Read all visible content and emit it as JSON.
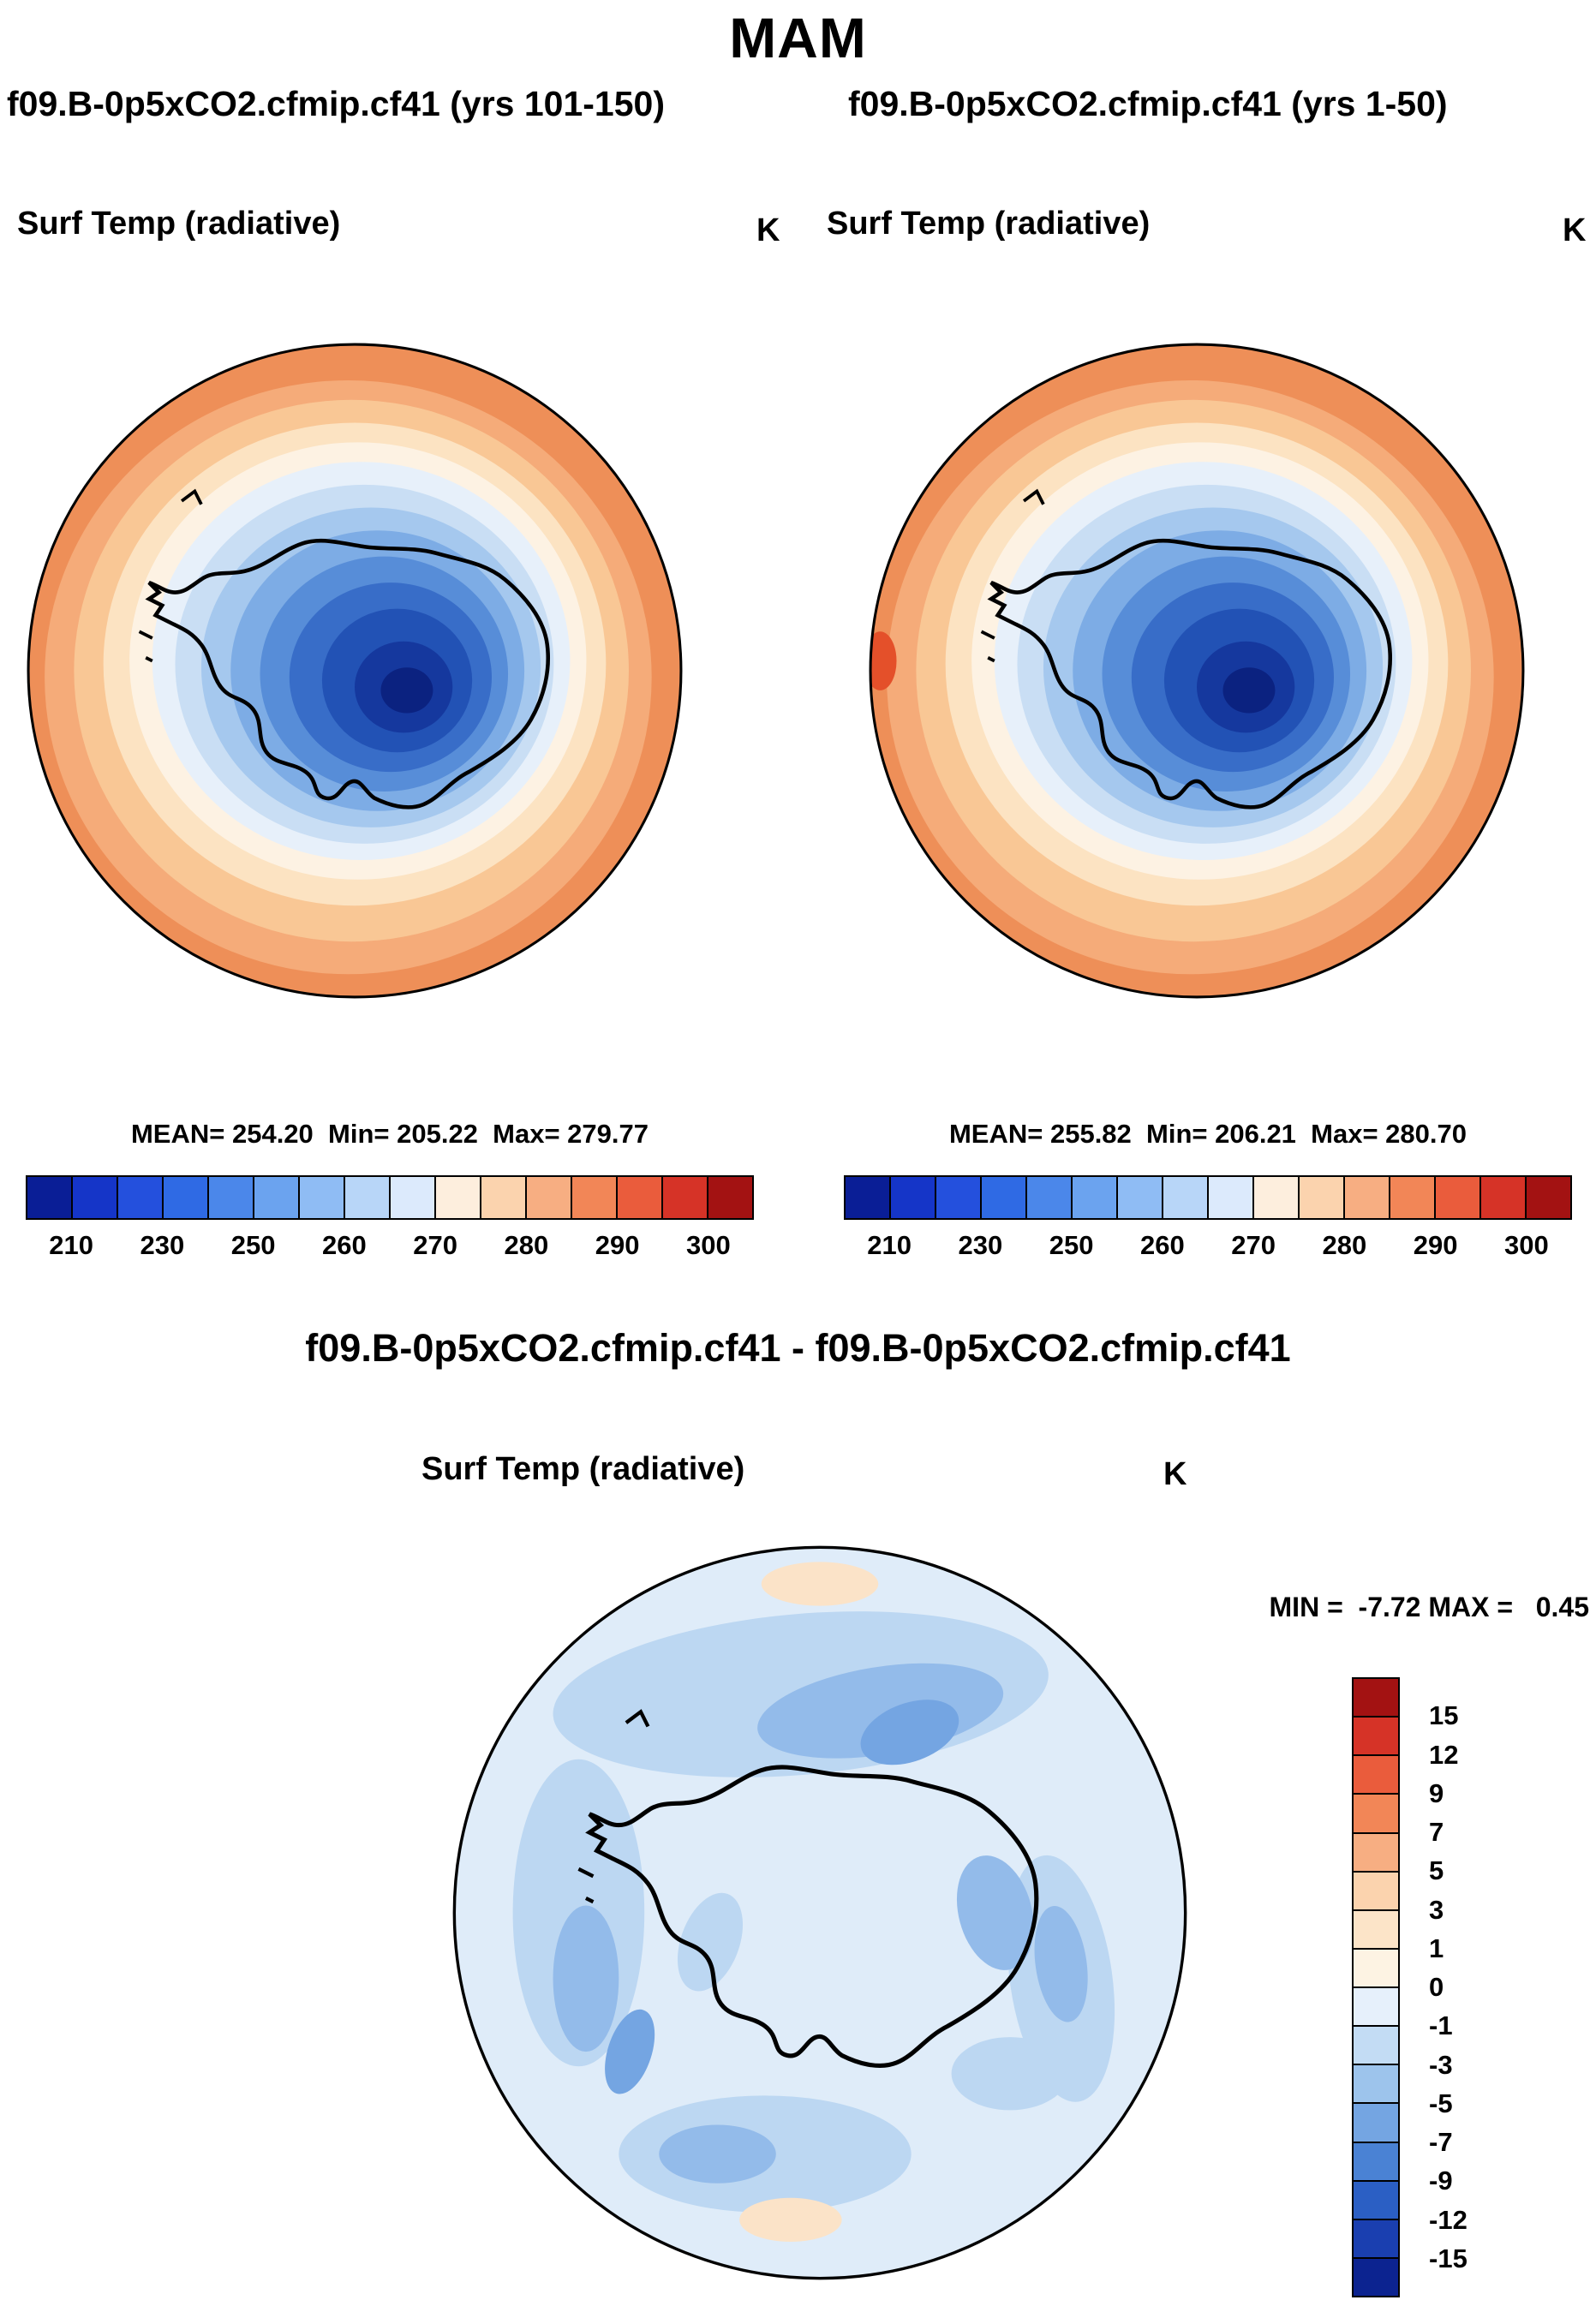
{
  "page": {
    "title": "MAM"
  },
  "panels": {
    "left": {
      "header": "f09.B-0p5xCO2.cfmip.cf41 (yrs 101-150)",
      "variable": "Surf Temp (radiative)",
      "units": "K",
      "stats": "MEAN= 254.20  Min= 205.22  Max= 279.77"
    },
    "right": {
      "header": "f09.B-0p5xCO2.cfmip.cf41 (yrs 1-50)",
      "variable": "Surf Temp (radiative)",
      "units": "K",
      "stats": "MEAN= 255.82  Min= 206.21  Max= 280.70"
    },
    "diff": {
      "header": "f09.B-0p5xCO2.cfmip.cf41 - f09.B-0p5xCO2.cfmip.cf41",
      "variable": "Surf Temp (radiative)",
      "units": "K",
      "stats": "MIN =  -7.72 MAX =   0.45"
    }
  },
  "colorbar_abs": {
    "colors": [
      "#0a1e96",
      "#1535c8",
      "#2450dd",
      "#2f6ae4",
      "#4b87ea",
      "#6ba3ef",
      "#8fbcf4",
      "#b8d6f8",
      "#dceafc",
      "#fdeedd",
      "#fbd3ae",
      "#f7ae82",
      "#f28657",
      "#ea5c3c",
      "#d63327",
      "#a31212"
    ],
    "ticks": [
      {
        "label": "210",
        "pos": 0.0625
      },
      {
        "label": "230",
        "pos": 0.1875
      },
      {
        "label": "250",
        "pos": 0.3125
      },
      {
        "label": "260",
        "pos": 0.4375
      },
      {
        "label": "270",
        "pos": 0.5625
      },
      {
        "label": "280",
        "pos": 0.6875
      },
      {
        "label": "290",
        "pos": 0.8125
      },
      {
        "label": "300",
        "pos": 0.9375
      }
    ]
  },
  "colorbar_diff": {
    "colors": [
      "#a31212",
      "#d63327",
      "#ea5c3c",
      "#f28657",
      "#f7ae82",
      "#fbd3ae",
      "#fce4c8",
      "#fdf3e3",
      "#e6f0fb",
      "#c3dcf4",
      "#9dc4ec",
      "#74a5e2",
      "#4a82d4",
      "#2b5fc4",
      "#1a3fb0",
      "#0c2390"
    ],
    "ticks": [
      {
        "label": "15",
        "pos": 0.0625
      },
      {
        "label": "12",
        "pos": 0.125
      },
      {
        "label": "9",
        "pos": 0.1875
      },
      {
        "label": "7",
        "pos": 0.25
      },
      {
        "label": "5",
        "pos": 0.3125
      },
      {
        "label": "3",
        "pos": 0.375
      },
      {
        "label": "1",
        "pos": 0.4375
      },
      {
        "label": "0",
        "pos": 0.5
      },
      {
        "label": "-1",
        "pos": 0.5625
      },
      {
        "label": "-3",
        "pos": 0.625
      },
      {
        "label": "-5",
        "pos": 0.6875
      },
      {
        "label": "-7",
        "pos": 0.75
      },
      {
        "label": "-9",
        "pos": 0.8125
      },
      {
        "label": "-12",
        "pos": 0.875
      },
      {
        "label": "-15",
        "pos": 0.9375
      }
    ]
  },
  "chart_data": [
    {
      "type": "heatmap",
      "subtype": "south-polar-stereographic-contour-map",
      "season": "MAM",
      "title": "f09.B-0p5xCO2.cfmip.cf41 (yrs 101-150)",
      "variable": "Surf Temp (radiative)",
      "units": "K",
      "region": "Antarctica / Southern Hemisphere polar cap",
      "stats": {
        "mean": 254.2,
        "min": 205.22,
        "max": 279.77
      },
      "legend_position": "bottom",
      "colorbar": {
        "orientation": "horizontal",
        "tick_labels": [
          210,
          230,
          250,
          260,
          270,
          280,
          290,
          300
        ],
        "colors": [
          "#0a1e96",
          "#1535c8",
          "#2450dd",
          "#2f6ae4",
          "#4b87ea",
          "#6ba3ef",
          "#8fbcf4",
          "#b8d6f8",
          "#dceafc",
          "#fdeedd",
          "#fbd3ae",
          "#f7ae82",
          "#f28657",
          "#ea5c3c",
          "#d63327",
          "#a31212"
        ]
      },
      "pattern": "warm (orange, ~275-285 K) over surrounding ocean, grading through light blues to dark navy (<210 K) over interior East Antarctica"
    },
    {
      "type": "heatmap",
      "subtype": "south-polar-stereographic-contour-map",
      "season": "MAM",
      "title": "f09.B-0p5xCO2.cfmip.cf41 (yrs 1-50)",
      "variable": "Surf Temp (radiative)",
      "units": "K",
      "region": "Antarctica / Southern Hemisphere polar cap",
      "stats": {
        "mean": 255.82,
        "min": 206.21,
        "max": 280.7
      },
      "legend_position": "bottom",
      "colorbar": {
        "orientation": "horizontal",
        "tick_labels": [
          210,
          230,
          250,
          260,
          270,
          280,
          290,
          300
        ],
        "colors": [
          "#0a1e96",
          "#1535c8",
          "#2450dd",
          "#2f6ae4",
          "#4b87ea",
          "#6ba3ef",
          "#8fbcf4",
          "#b8d6f8",
          "#dceafc",
          "#fdeedd",
          "#fbd3ae",
          "#f7ae82",
          "#f28657",
          "#ea5c3c",
          "#d63327",
          "#a31212"
        ]
      },
      "pattern": "same spatial pattern as yrs 101-150 panel, slightly warmer overall"
    },
    {
      "type": "heatmap",
      "subtype": "difference-map",
      "season": "MAM",
      "title": "f09.B-0p5xCO2.cfmip.cf41 - f09.B-0p5xCO2.cfmip.cf41",
      "variable": "Surf Temp (radiative)",
      "units": "K",
      "region": "Antarctica / Southern Hemisphere polar cap",
      "stats": {
        "min": -7.72,
        "max": 0.45
      },
      "legend_position": "right",
      "colorbar": {
        "orientation": "vertical",
        "tick_labels": [
          15,
          12,
          9,
          7,
          5,
          3,
          1,
          0,
          -1,
          -3,
          -5,
          -7,
          -9,
          -12,
          -15
        ],
        "colors": [
          "#a31212",
          "#d63327",
          "#ea5c3c",
          "#f28657",
          "#f7ae82",
          "#fbd3ae",
          "#fce4c8",
          "#fdf3e3",
          "#e6f0fb",
          "#c3dcf4",
          "#9dc4ec",
          "#74a5e2",
          "#4a82d4",
          "#2b5fc4",
          "#1a3fb0",
          "#0c2390"
        ]
      },
      "pattern": "mostly weak cooling (0 to -3 K, pale blue) everywhere; stronger cooling bands (-3 to -7 K, medium blue) over ocean north of the coast and west of the peninsula; tiny patches of weak warming (0 to 1 K, peach) at top and bottom edges"
    }
  ]
}
